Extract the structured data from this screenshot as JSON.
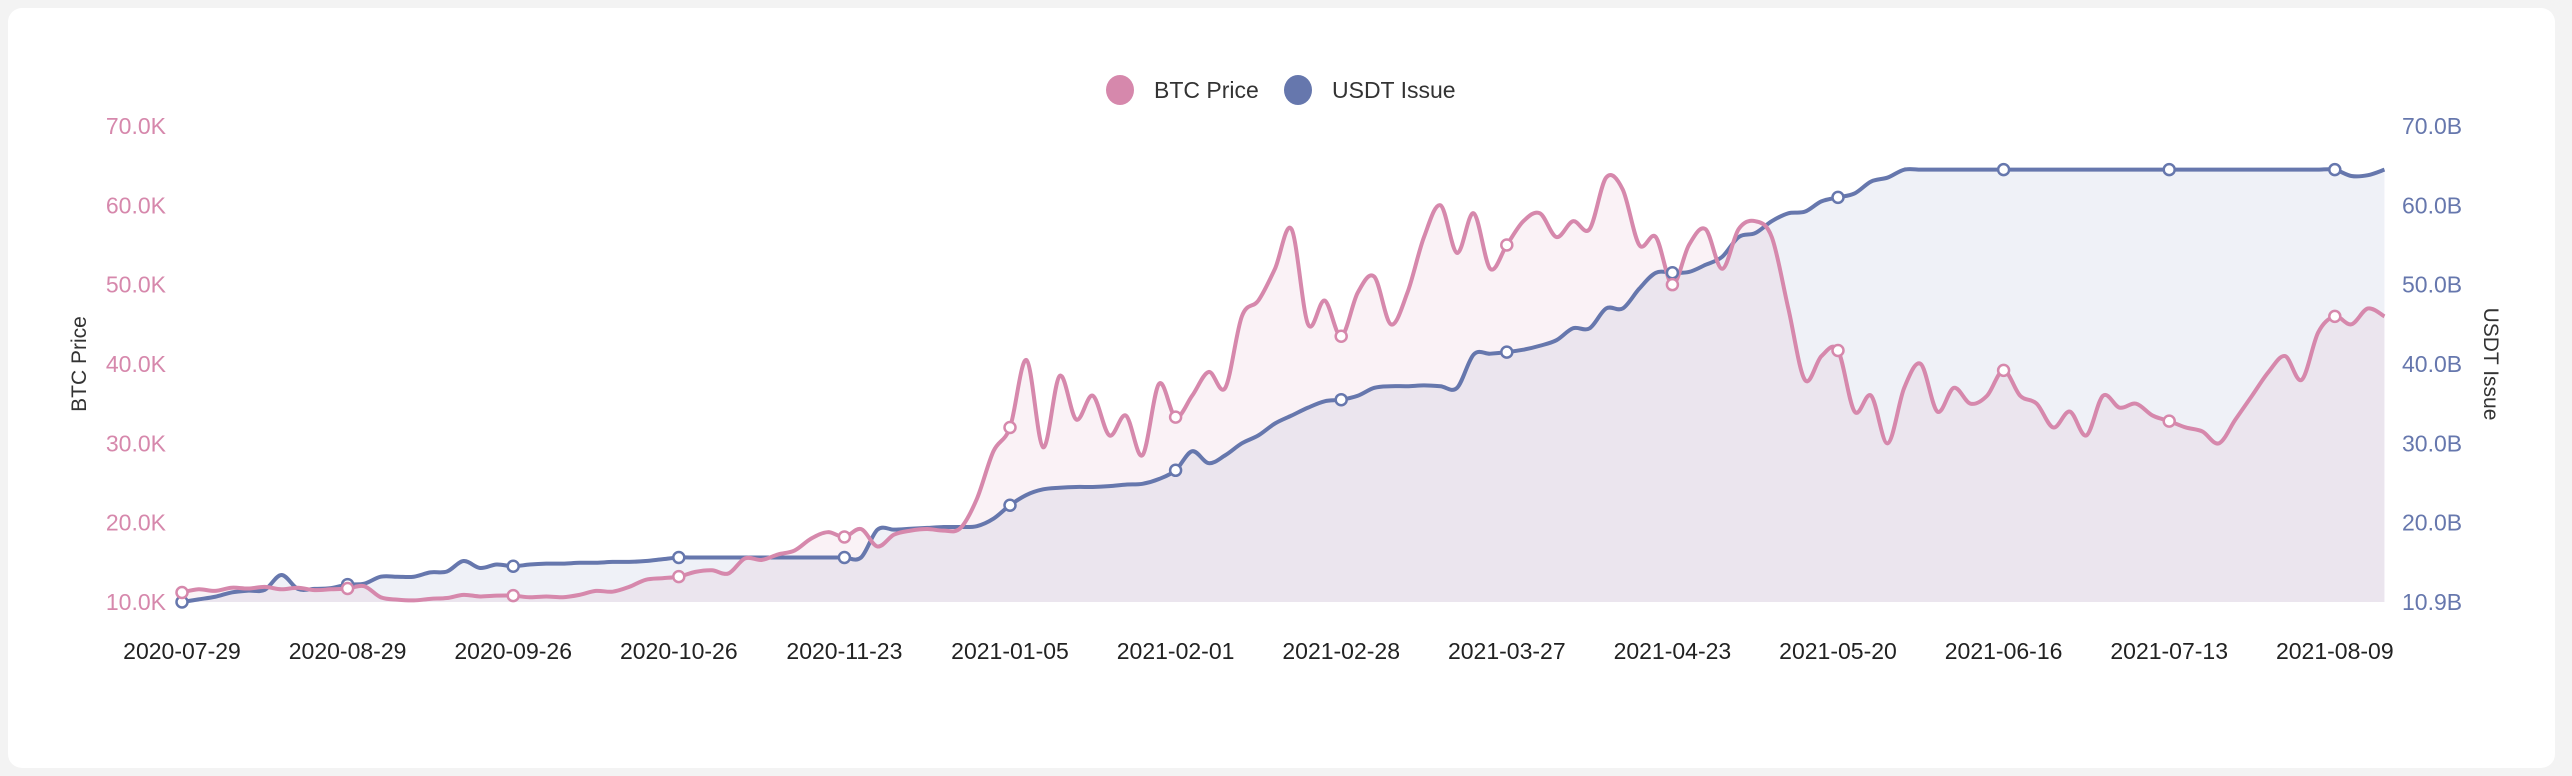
{
  "chart_data": {
    "type": "line",
    "title": "",
    "legend_position": "top-center",
    "xlabel": "",
    "ylabel": "BTC Price",
    "ylabel_right": "USDT Issue",
    "x_tick_labels": [
      "2020-07-29",
      "2020-08-29",
      "2020-09-26",
      "2020-10-26",
      "2020-11-23",
      "2021-01-05",
      "2021-02-01",
      "2021-02-28",
      "2021-03-27",
      "2021-04-23",
      "2021-05-20",
      "2021-06-16",
      "2021-07-13",
      "2021-08-09"
    ],
    "points_per_label": 10,
    "y_left": {
      "ticks": [
        10,
        20,
        30,
        40,
        50,
        60,
        70
      ],
      "tick_labels": [
        "10.0K",
        "20.0K",
        "30.0K",
        "40.0K",
        "50.0K",
        "60.0K",
        "70.0K"
      ],
      "ylim": [
        10,
        70
      ],
      "unit": "K USD"
    },
    "y_right": {
      "ticks": [
        10.9,
        20,
        30,
        40,
        50,
        60,
        70
      ],
      "tick_labels": [
        "10.9B",
        "20.0B",
        "30.0B",
        "40.0B",
        "50.0B",
        "60.0B",
        "70.0B"
      ],
      "ylim": [
        10.9,
        70
      ],
      "unit": "B USD"
    },
    "grid": false,
    "series": [
      {
        "name": "BTC Price",
        "axis": "left",
        "color": "#d688ac",
        "fill": "rgba(214,136,172,0.11)",
        "values": [
          11.2,
          11.6,
          11.4,
          11.8,
          11.7,
          11.9,
          11.6,
          11.8,
          11.5,
          11.6,
          11.7,
          12.0,
          10.6,
          10.3,
          10.2,
          10.4,
          10.5,
          10.9,
          10.7,
          10.8,
          10.8,
          10.6,
          10.7,
          10.6,
          10.9,
          11.4,
          11.3,
          11.9,
          12.8,
          13.0,
          13.2,
          13.8,
          14.0,
          13.6,
          15.5,
          15.3,
          16.0,
          16.5,
          18.0,
          18.8,
          18.2,
          19.2,
          17.0,
          18.5,
          19.0,
          19.2,
          19.0,
          19.3,
          23.0,
          29.0,
          32.0,
          40.5,
          29.5,
          38.5,
          33.0,
          36.0,
          31.0,
          33.5,
          28.5,
          37.5,
          33.3,
          36.0,
          39.0,
          37.0,
          46.0,
          48.0,
          52.0,
          57.0,
          45.0,
          48.0,
          43.5,
          49.0,
          51.0,
          45.0,
          49.0,
          56.0,
          60.0,
          54.0,
          59.0,
          52.0,
          55.0,
          58.0,
          59.0,
          56.0,
          58.0,
          57.0,
          63.5,
          62.0,
          55.0,
          56.0,
          50.0,
          55.0,
          57.0,
          52.0,
          57.0,
          58.0,
          56.0,
          47.0,
          38.0,
          41.0,
          41.7,
          34.0,
          36.0,
          30.0,
          37.0,
          40.0,
          34.0,
          37.0,
          35.0,
          36.0,
          39.2,
          36.0,
          35.0,
          32.0,
          34.0,
          31.0,
          36.0,
          34.5,
          35.0,
          33.5,
          32.8,
          32.0,
          31.5,
          30.0,
          33.0,
          36.0,
          39.0,
          41.0,
          38.0,
          44.0,
          46.0,
          45.0,
          47.0,
          46.0
        ]
      },
      {
        "name": "USDT Issue",
        "axis": "right",
        "color": "#6677ad",
        "fill": "rgba(102,119,173,0.10)",
        "values": [
          10.9,
          11.2,
          11.5,
          12.0,
          12.2,
          12.3,
          14.0,
          12.4,
          12.4,
          12.5,
          12.9,
          13.0,
          13.8,
          13.8,
          13.8,
          14.3,
          14.4,
          15.6,
          14.8,
          15.2,
          15.0,
          15.2,
          15.3,
          15.3,
          15.4,
          15.4,
          15.5,
          15.5,
          15.6,
          15.8,
          16.0,
          16.0,
          16.0,
          16.0,
          16.0,
          16.0,
          16.0,
          16.0,
          16.0,
          16.0,
          16.0,
          16.0,
          19.2,
          19.2,
          19.3,
          19.4,
          19.5,
          19.5,
          19.6,
          20.5,
          22.2,
          23.5,
          24.2,
          24.4,
          24.5,
          24.5,
          24.6,
          24.8,
          24.9,
          25.5,
          26.6,
          29.0,
          27.5,
          28.5,
          30.0,
          31.0,
          32.5,
          33.5,
          34.5,
          35.3,
          35.5,
          36.0,
          37.0,
          37.2,
          37.2,
          37.3,
          37.2,
          37.0,
          41.2,
          41.3,
          41.5,
          41.8,
          42.3,
          43.0,
          44.5,
          44.5,
          47.0,
          47.0,
          49.5,
          51.5,
          51.5,
          51.6,
          52.5,
          53.5,
          56.0,
          56.5,
          58.0,
          59.0,
          59.2,
          60.5,
          61.0,
          61.5,
          63.0,
          63.5,
          64.5,
          64.5,
          64.5,
          64.5,
          64.5,
          64.5,
          64.5,
          64.5,
          64.5,
          64.5,
          64.5,
          64.5,
          64.5,
          64.5,
          64.5,
          64.5,
          64.5,
          64.5,
          64.5,
          64.5,
          64.5,
          64.5,
          64.5,
          64.5,
          64.5,
          64.5,
          64.5,
          63.7,
          63.8,
          64.5
        ]
      }
    ]
  }
}
